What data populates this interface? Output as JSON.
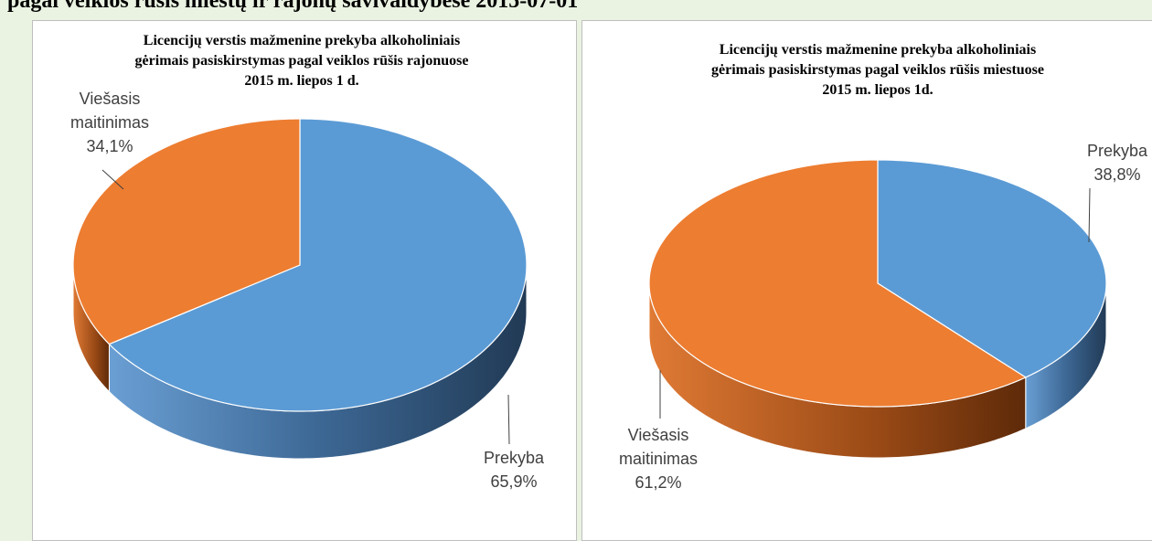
{
  "header": "pagal veiklos rūšis miestų ir rajonų savivaldybėse 2015-07-01",
  "chart_data": [
    {
      "type": "pie",
      "title": [
        "Licencijų verstis mažmenine prekyba alkoholiniais",
        "gėrimais pasiskirstymas pagal veiklos rūšis rajonuose",
        "2015 m. liepos 1 d."
      ],
      "categories": [
        "Prekyba",
        "Viešasis maitinimas"
      ],
      "values": [
        65.9,
        34.1
      ],
      "value_labels": [
        "65,9%",
        "34,1%"
      ],
      "colors": [
        "#5b9bd5",
        "#ed7d31"
      ]
    },
    {
      "type": "pie",
      "title": [
        "Licencijų verstis mažmenine prekyba alkoholiniais",
        "gėrimais pasiskirstymas pagal veiklos rūšis miestuose",
        "2015 m. liepos 1d."
      ],
      "categories": [
        "Prekyba",
        "Viešasis maitinimas"
      ],
      "values": [
        38.8,
        61.2
      ],
      "value_labels": [
        "38,8%",
        "61,2%"
      ],
      "colors": [
        "#5b9bd5",
        "#ed7d31"
      ]
    }
  ]
}
